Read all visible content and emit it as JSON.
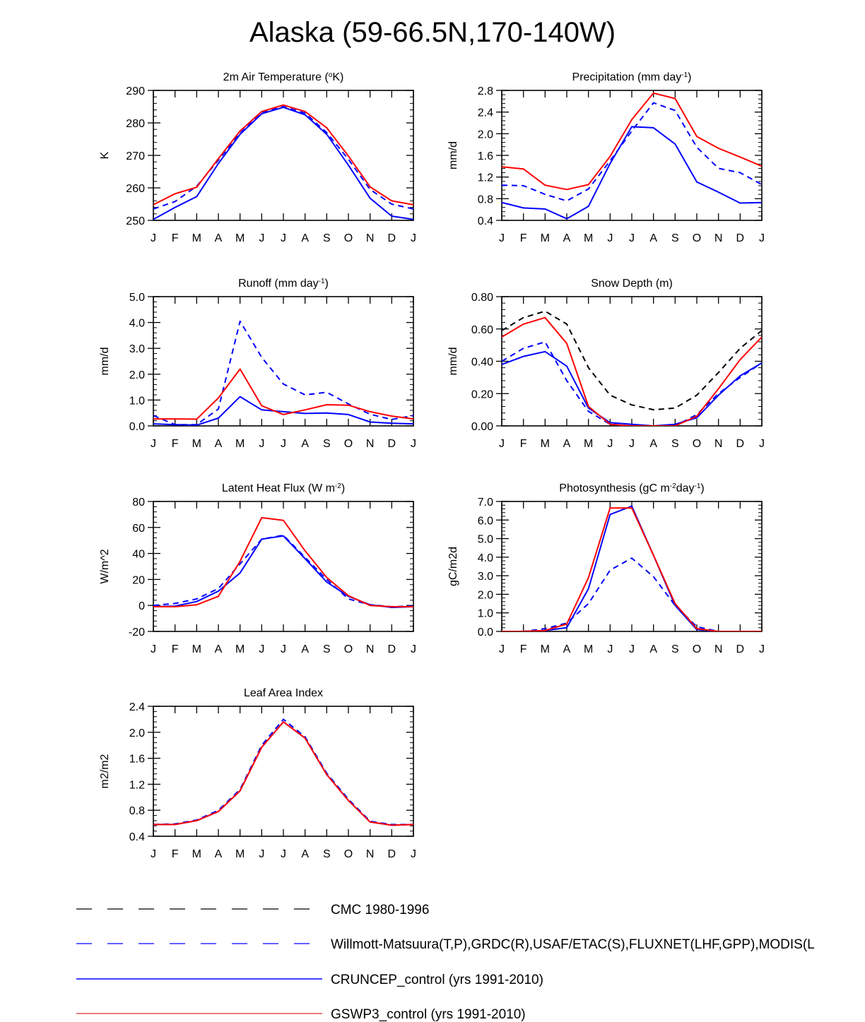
{
  "title": "Alaska (59-66.5N,170-140W)",
  "colors": {
    "obs": "#0000ff",
    "cmc": "#000000",
    "cruncep": "#0000ff",
    "gswp3": "#ff0000",
    "legend_gswp3": "#e05050"
  },
  "months": [
    "J",
    "F",
    "M",
    "A",
    "M",
    "J",
    "J",
    "A",
    "S",
    "O",
    "N",
    "D",
    "J"
  ],
  "legend": [
    {
      "key": "cmc",
      "label": "CMC 1980-1996",
      "color": "#000000",
      "dashed": true
    },
    {
      "key": "obs",
      "label": "Willmott-Matsuura(T,P),GRDC(R),USAF/ETAC(S),FLUXNET(LHF,GPP),MODIS(L",
      "color": "#0000ff",
      "dashed": true
    },
    {
      "key": "cruncep",
      "label": "CRUNCEP_control (yrs 1991-2010)",
      "color": "#0000ff",
      "dashed": false
    },
    {
      "key": "gswp3",
      "label": "GSWP3_control (yrs 1991-2010)",
      "color": "#e05050",
      "dashed": false
    }
  ],
  "chart_data": [
    {
      "type": "line",
      "title": "2m Air Temperature (°K)",
      "title_parts": [
        "2m Air Temperature (",
        "o",
        "K)"
      ],
      "ylabel": "K",
      "ylim": [
        250,
        290
      ],
      "yticks": [
        250,
        260,
        270,
        280,
        290
      ],
      "ytick_labels": [
        "250",
        "260",
        "270",
        "280",
        "290"
      ],
      "series": [
        {
          "name": "Willmott-Matsuura",
          "style": "obs",
          "values": [
            253.5,
            255.8,
            260.5,
            268.5,
            276.8,
            283.3,
            285.0,
            283.0,
            277.0,
            268.8,
            259.5,
            255.0,
            253.5
          ]
        },
        {
          "name": "CRUNCEP_control",
          "style": "cruncep",
          "values": [
            250.3,
            254.0,
            257.3,
            267.5,
            276.5,
            282.8,
            284.8,
            282.5,
            276.5,
            267.0,
            256.8,
            251.3,
            250.3
          ]
        },
        {
          "name": "GSWP3_control",
          "style": "gswp3",
          "values": [
            254.8,
            258.2,
            260.2,
            269.0,
            277.5,
            283.5,
            285.5,
            283.5,
            278.5,
            269.8,
            260.3,
            256.0,
            254.8
          ]
        }
      ]
    },
    {
      "type": "line",
      "title": "Precipitation (mm day-1)",
      "title_parts": [
        "Precipitation (mm day",
        "-1",
        ")"
      ],
      "ylabel": "mm/d",
      "ylim": [
        0.4,
        2.8
      ],
      "yticks": [
        0.4,
        0.8,
        1.2,
        1.6,
        2.0,
        2.4,
        2.8
      ],
      "ytick_labels": [
        "0.4",
        "0.8",
        "1.2",
        "1.6",
        "2.0",
        "2.4",
        "2.8"
      ],
      "series": [
        {
          "name": "Willmott-Matsuura",
          "style": "obs",
          "values": [
            1.05,
            1.04,
            0.88,
            0.76,
            0.98,
            1.5,
            2.05,
            2.57,
            2.43,
            1.75,
            1.36,
            1.28,
            1.06
          ]
        },
        {
          "name": "CRUNCEP_control",
          "style": "cruncep",
          "values": [
            0.73,
            0.63,
            0.61,
            0.43,
            0.66,
            1.45,
            2.13,
            2.11,
            1.81,
            1.11,
            0.92,
            0.72,
            0.73
          ]
        },
        {
          "name": "GSWP3_control",
          "style": "gswp3",
          "values": [
            1.39,
            1.35,
            1.05,
            0.97,
            1.06,
            1.58,
            2.26,
            2.75,
            2.65,
            1.95,
            1.73,
            1.57,
            1.4
          ]
        }
      ]
    },
    {
      "type": "line",
      "title": "Runoff (mm day-1)",
      "title_parts": [
        "Runoff (mm day",
        "-1",
        ")"
      ],
      "ylabel": "mm/d",
      "ylim": [
        0,
        5
      ],
      "yticks": [
        0,
        1,
        2,
        3,
        4,
        5
      ],
      "ytick_labels": [
        "0.0",
        "1.0",
        "2.0",
        "3.0",
        "4.0",
        "5.0"
      ],
      "series": [
        {
          "name": "Willmott-Matsuura",
          "style": "obs",
          "values": [
            0.4,
            0.05,
            0.05,
            0.65,
            4.05,
            2.65,
            1.62,
            1.2,
            1.3,
            0.85,
            0.45,
            0.25,
            0.4
          ]
        },
        {
          "name": "CRUNCEP_control",
          "style": "cruncep",
          "values": [
            0.08,
            0.05,
            0.03,
            0.3,
            1.13,
            0.62,
            0.55,
            0.48,
            0.5,
            0.44,
            0.15,
            0.1,
            0.08
          ]
        },
        {
          "name": "GSWP3_control",
          "style": "gswp3",
          "values": [
            0.27,
            0.27,
            0.26,
            1.08,
            2.2,
            0.78,
            0.44,
            0.62,
            0.82,
            0.8,
            0.55,
            0.38,
            0.27
          ]
        }
      ]
    },
    {
      "type": "line",
      "title": "Snow Depth (m)",
      "title_parts": [
        "Snow Depth (m)"
      ],
      "ylabel": "mm/d",
      "ylim": [
        0,
        0.8
      ],
      "yticks": [
        0,
        0.2,
        0.4,
        0.6,
        0.8
      ],
      "ytick_labels": [
        "0.00",
        "0.20",
        "0.40",
        "0.60",
        "0.80"
      ],
      "series": [
        {
          "name": "CMC 1980-1996",
          "style": "cmc",
          "values": [
            0.59,
            0.67,
            0.71,
            0.63,
            0.36,
            0.19,
            0.13,
            0.1,
            0.11,
            0.19,
            0.33,
            0.48,
            0.59
          ]
        },
        {
          "name": "Willmott-Matsuura",
          "style": "obs",
          "values": [
            0.4,
            0.48,
            0.52,
            0.28,
            0.09,
            0.01,
            0.0,
            0.0,
            0.0,
            0.07,
            0.2,
            0.3,
            0.39
          ]
        },
        {
          "name": "CRUNCEP_control",
          "style": "cruncep",
          "values": [
            0.38,
            0.43,
            0.46,
            0.37,
            0.11,
            0.02,
            0.01,
            0.0,
            0.01,
            0.05,
            0.19,
            0.31,
            0.39
          ]
        },
        {
          "name": "GSWP3_control",
          "style": "gswp3",
          "values": [
            0.55,
            0.63,
            0.67,
            0.51,
            0.12,
            0.01,
            0.0,
            0.0,
            0.0,
            0.06,
            0.23,
            0.41,
            0.55
          ]
        }
      ]
    },
    {
      "type": "line",
      "title": "Latent Heat Flux (W m-2)",
      "title_parts": [
        "Latent Heat Flux (W m",
        "-2",
        ")"
      ],
      "ylabel": "W/m^2",
      "ylim": [
        -20,
        80
      ],
      "yticks": [
        -20,
        0,
        20,
        40,
        60,
        80
      ],
      "ytick_labels": [
        "-20",
        "0",
        "20",
        "40",
        "60",
        "80"
      ],
      "series": [
        {
          "name": "Willmott-Matsuura",
          "style": "obs",
          "values": [
            0.0,
            1.5,
            5.0,
            13.0,
            32.0,
            51.0,
            54.0,
            37.0,
            20.0,
            5.0,
            0.5,
            -1.0,
            -0.5
          ]
        },
        {
          "name": "CRUNCEP_control",
          "style": "cruncep",
          "values": [
            -1.0,
            -0.5,
            3.0,
            11.0,
            25.0,
            51.0,
            53.5,
            36.0,
            18.0,
            7.0,
            0.5,
            -1.5,
            -1.0
          ]
        },
        {
          "name": "GSWP3_control",
          "style": "gswp3",
          "values": [
            -1.0,
            -1.0,
            0.5,
            7.0,
            34.0,
            67.5,
            65.5,
            42.0,
            21.5,
            7.5,
            0.0,
            -1.0,
            -1.0
          ]
        }
      ]
    },
    {
      "type": "line",
      "title": "Photosynthesis (gC m-2day-1)",
      "title_parts": [
        "Photosynthesis (gC m",
        "-2",
        "day",
        "-1",
        ")"
      ],
      "ylabel": "gC/m2d",
      "ylim": [
        0,
        7
      ],
      "yticks": [
        0,
        1,
        2,
        3,
        4,
        5,
        6,
        7
      ],
      "ytick_labels": [
        "0.0",
        "1.0",
        "2.0",
        "3.0",
        "4.0",
        "5.0",
        "6.0",
        "7.0"
      ],
      "series": [
        {
          "name": "Willmott-Matsuura",
          "style": "obs",
          "values": [
            0.0,
            0.0,
            0.15,
            0.45,
            1.5,
            3.3,
            3.95,
            2.95,
            1.4,
            0.25,
            0.0,
            0.0,
            0.0
          ]
        },
        {
          "name": "CRUNCEP_control",
          "style": "cruncep",
          "values": [
            0.0,
            0.0,
            0.05,
            0.2,
            2.3,
            6.3,
            6.75,
            4.1,
            1.4,
            0.1,
            0.0,
            0.0,
            0.0
          ]
        },
        {
          "name": "GSWP3_control",
          "style": "gswp3",
          "values": [
            0.0,
            0.0,
            0.05,
            0.4,
            2.9,
            6.65,
            6.65,
            4.1,
            1.5,
            0.15,
            0.0,
            0.0,
            0.0
          ]
        }
      ]
    },
    {
      "type": "line",
      "title": "Leaf Area Index",
      "title_parts": [
        "Leaf Area Index"
      ],
      "ylabel": "m2/m2",
      "ylim": [
        0.4,
        2.4
      ],
      "yticks": [
        0.4,
        0.8,
        1.2,
        1.6,
        2.0,
        2.4
      ],
      "ytick_labels": [
        "0.4",
        "0.8",
        "1.2",
        "1.6",
        "2.0",
        "2.4"
      ],
      "series": [
        {
          "name": "MODIS",
          "style": "obs",
          "values": [
            0.58,
            0.59,
            0.65,
            0.8,
            1.12,
            1.8,
            2.2,
            1.93,
            1.37,
            0.97,
            0.63,
            0.58,
            0.58
          ]
        },
        {
          "name": "CRUNCEP_control",
          "style": "cruncep",
          "values": [
            0.58,
            0.58,
            0.64,
            0.78,
            1.1,
            1.77,
            2.16,
            1.91,
            1.35,
            0.95,
            0.62,
            0.57,
            0.58
          ]
        },
        {
          "name": "GSWP3_control",
          "style": "gswp3",
          "values": [
            0.58,
            0.58,
            0.64,
            0.78,
            1.1,
            1.77,
            2.16,
            1.91,
            1.35,
            0.95,
            0.62,
            0.57,
            0.58
          ]
        }
      ]
    }
  ]
}
